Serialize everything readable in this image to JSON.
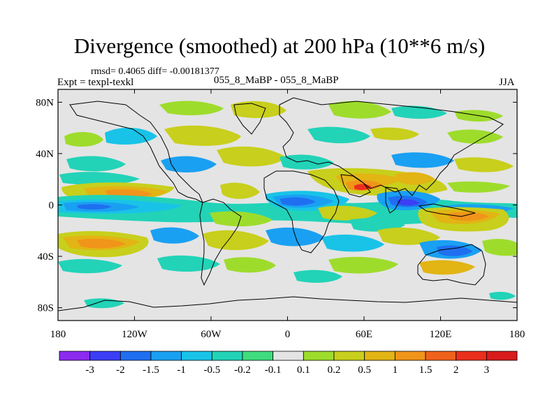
{
  "title": "Divergence (smoothed) at 200 hPa (10**6 m/s)",
  "stats": "rmsd= 0.4065 diff= -0.00181377",
  "expt": "Expt = texpl-texkl",
  "subtitle": "055_8_MaBP - 055_8_MaBP",
  "season": "JJA",
  "colors": {
    "background": "#e4e4e4",
    "frame": "#000000",
    "coast": "#000000"
  },
  "chart_data": {
    "type": "heatmap",
    "variable": "Divergence (smoothed) at 200 hPa",
    "units": "10**6 m/s",
    "x_ticks": [
      "180",
      "120W",
      "60W",
      "0",
      "60E",
      "120E",
      "180"
    ],
    "x_tick_values": [
      -180,
      -120,
      -60,
      0,
      60,
      120,
      180
    ],
    "y_ticks": [
      "80N",
      "40N",
      "0",
      "40S",
      "80S"
    ],
    "y_tick_values": [
      80,
      40,
      0,
      -40,
      -80
    ],
    "xlim": [
      -180,
      180
    ],
    "ylim": [
      -90,
      90
    ],
    "colorbar": {
      "labels": [
        "-3",
        "-2",
        "-1.5",
        "-1",
        "-0.5",
        "-0.2",
        "-0.1",
        "0.1",
        "0.2",
        "0.5",
        "1",
        "1.5",
        "2",
        "3"
      ],
      "colors": [
        "#8d2af0",
        "#3b3ef5",
        "#1f6ff0",
        "#1aa0f2",
        "#19c3e8",
        "#22d3b8",
        "#3fdc7e",
        "#e4e4e4",
        "#9edc2c",
        "#c8cf1c",
        "#e2b414",
        "#f0941a",
        "#ef621c",
        "#ea2f1c",
        "#d81c1c"
      ]
    },
    "features": [
      {
        "name": "equatorial convergence band",
        "lon_range": [
          -175,
          120
        ],
        "lat_center": 0,
        "value": -1.5
      },
      {
        "name": "west africa convergence",
        "lon_center": 20,
        "lat_center": 3,
        "value": -1.5
      },
      {
        "name": "indian ocean convergence",
        "lon_center": 95,
        "lat_center": 0,
        "value": -2
      },
      {
        "name": "arabian sea divergence max",
        "lon_center": 60,
        "lat_center": 14,
        "value": 2
      },
      {
        "name": "north pacific divergence",
        "lon_center": -150,
        "lat_center": 8,
        "value": 1
      },
      {
        "name": "western pacific divergence",
        "lon_center": 150,
        "lat_center": -8,
        "value": 1.5
      },
      {
        "name": "south pacific convergence",
        "lon_center": 140,
        "lat_center": -28,
        "value": -1
      },
      {
        "name": "southern hemisphere divergence band",
        "lon_range": [
          -180,
          40
        ],
        "lat_center": -25,
        "value": 1
      }
    ]
  }
}
